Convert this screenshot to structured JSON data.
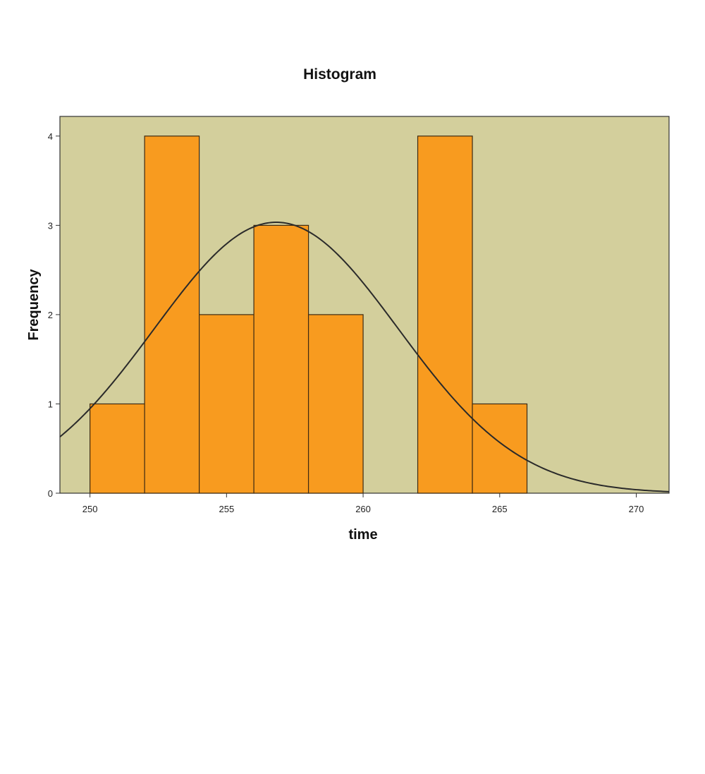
{
  "chart_data": {
    "type": "bar",
    "title": "Histogram",
    "xlabel": "time",
    "ylabel": "Frequency",
    "xlim": [
      248.9,
      271.2
    ],
    "ylim": [
      0,
      4.22
    ],
    "xticks": [
      250,
      255,
      260,
      265,
      270
    ],
    "yticks": [
      0,
      1,
      2,
      3,
      4
    ],
    "bin_width": 2,
    "bins": [
      {
        "start": 250,
        "end": 252,
        "count": 1
      },
      {
        "start": 252,
        "end": 254,
        "count": 4
      },
      {
        "start": 254,
        "end": 256,
        "count": 2
      },
      {
        "start": 256,
        "end": 258,
        "count": 3
      },
      {
        "start": 258,
        "end": 260,
        "count": 2
      },
      {
        "start": 260,
        "end": 262,
        "count": 0
      },
      {
        "start": 262,
        "end": 264,
        "count": 4
      },
      {
        "start": 264,
        "end": 266,
        "count": 1
      }
    ],
    "normal_curve": {
      "mean": 256.82,
      "std_dev": 4.47,
      "n": 17
    },
    "grid": false,
    "legend": "none",
    "colors": {
      "plot_background": "#d3cf9c",
      "bar_fill": "#f89b1f",
      "bar_edge": "#3d2a12",
      "curve": "#2a2a2a",
      "axis": "#333333"
    }
  }
}
